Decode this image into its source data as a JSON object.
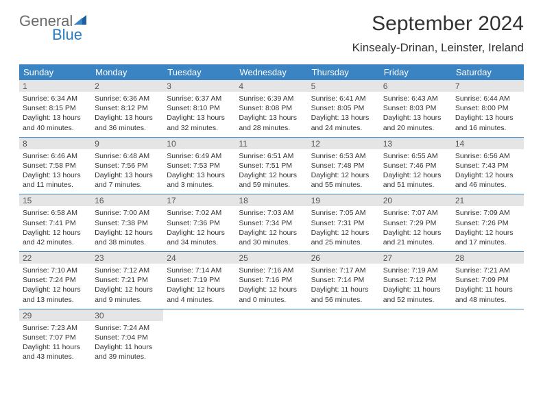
{
  "brand": {
    "part1": "General",
    "part2": "Blue"
  },
  "title": "September 2024",
  "location": "Kinsealy-Drinan, Leinster, Ireland",
  "colors": {
    "header_bg": "#3b84c4",
    "header_fg": "#ffffff",
    "daynum_bg": "#e5e5e5",
    "brand_gray": "#6a6a6a",
    "brand_blue": "#2a7abf",
    "rule": "#3b84c4",
    "text": "#333333"
  },
  "weekdays": [
    "Sunday",
    "Monday",
    "Tuesday",
    "Wednesday",
    "Thursday",
    "Friday",
    "Saturday"
  ],
  "days": [
    {
      "n": "1",
      "sr": "Sunrise: 6:34 AM",
      "ss": "Sunset: 8:15 PM",
      "d1": "Daylight: 13 hours",
      "d2": "and 40 minutes."
    },
    {
      "n": "2",
      "sr": "Sunrise: 6:36 AM",
      "ss": "Sunset: 8:12 PM",
      "d1": "Daylight: 13 hours",
      "d2": "and 36 minutes."
    },
    {
      "n": "3",
      "sr": "Sunrise: 6:37 AM",
      "ss": "Sunset: 8:10 PM",
      "d1": "Daylight: 13 hours",
      "d2": "and 32 minutes."
    },
    {
      "n": "4",
      "sr": "Sunrise: 6:39 AM",
      "ss": "Sunset: 8:08 PM",
      "d1": "Daylight: 13 hours",
      "d2": "and 28 minutes."
    },
    {
      "n": "5",
      "sr": "Sunrise: 6:41 AM",
      "ss": "Sunset: 8:05 PM",
      "d1": "Daylight: 13 hours",
      "d2": "and 24 minutes."
    },
    {
      "n": "6",
      "sr": "Sunrise: 6:43 AM",
      "ss": "Sunset: 8:03 PM",
      "d1": "Daylight: 13 hours",
      "d2": "and 20 minutes."
    },
    {
      "n": "7",
      "sr": "Sunrise: 6:44 AM",
      "ss": "Sunset: 8:00 PM",
      "d1": "Daylight: 13 hours",
      "d2": "and 16 minutes."
    },
    {
      "n": "8",
      "sr": "Sunrise: 6:46 AM",
      "ss": "Sunset: 7:58 PM",
      "d1": "Daylight: 13 hours",
      "d2": "and 11 minutes."
    },
    {
      "n": "9",
      "sr": "Sunrise: 6:48 AM",
      "ss": "Sunset: 7:56 PM",
      "d1": "Daylight: 13 hours",
      "d2": "and 7 minutes."
    },
    {
      "n": "10",
      "sr": "Sunrise: 6:49 AM",
      "ss": "Sunset: 7:53 PM",
      "d1": "Daylight: 13 hours",
      "d2": "and 3 minutes."
    },
    {
      "n": "11",
      "sr": "Sunrise: 6:51 AM",
      "ss": "Sunset: 7:51 PM",
      "d1": "Daylight: 12 hours",
      "d2": "and 59 minutes."
    },
    {
      "n": "12",
      "sr": "Sunrise: 6:53 AM",
      "ss": "Sunset: 7:48 PM",
      "d1": "Daylight: 12 hours",
      "d2": "and 55 minutes."
    },
    {
      "n": "13",
      "sr": "Sunrise: 6:55 AM",
      "ss": "Sunset: 7:46 PM",
      "d1": "Daylight: 12 hours",
      "d2": "and 51 minutes."
    },
    {
      "n": "14",
      "sr": "Sunrise: 6:56 AM",
      "ss": "Sunset: 7:43 PM",
      "d1": "Daylight: 12 hours",
      "d2": "and 46 minutes."
    },
    {
      "n": "15",
      "sr": "Sunrise: 6:58 AM",
      "ss": "Sunset: 7:41 PM",
      "d1": "Daylight: 12 hours",
      "d2": "and 42 minutes."
    },
    {
      "n": "16",
      "sr": "Sunrise: 7:00 AM",
      "ss": "Sunset: 7:38 PM",
      "d1": "Daylight: 12 hours",
      "d2": "and 38 minutes."
    },
    {
      "n": "17",
      "sr": "Sunrise: 7:02 AM",
      "ss": "Sunset: 7:36 PM",
      "d1": "Daylight: 12 hours",
      "d2": "and 34 minutes."
    },
    {
      "n": "18",
      "sr": "Sunrise: 7:03 AM",
      "ss": "Sunset: 7:34 PM",
      "d1": "Daylight: 12 hours",
      "d2": "and 30 minutes."
    },
    {
      "n": "19",
      "sr": "Sunrise: 7:05 AM",
      "ss": "Sunset: 7:31 PM",
      "d1": "Daylight: 12 hours",
      "d2": "and 25 minutes."
    },
    {
      "n": "20",
      "sr": "Sunrise: 7:07 AM",
      "ss": "Sunset: 7:29 PM",
      "d1": "Daylight: 12 hours",
      "d2": "and 21 minutes."
    },
    {
      "n": "21",
      "sr": "Sunrise: 7:09 AM",
      "ss": "Sunset: 7:26 PM",
      "d1": "Daylight: 12 hours",
      "d2": "and 17 minutes."
    },
    {
      "n": "22",
      "sr": "Sunrise: 7:10 AM",
      "ss": "Sunset: 7:24 PM",
      "d1": "Daylight: 12 hours",
      "d2": "and 13 minutes."
    },
    {
      "n": "23",
      "sr": "Sunrise: 7:12 AM",
      "ss": "Sunset: 7:21 PM",
      "d1": "Daylight: 12 hours",
      "d2": "and 9 minutes."
    },
    {
      "n": "24",
      "sr": "Sunrise: 7:14 AM",
      "ss": "Sunset: 7:19 PM",
      "d1": "Daylight: 12 hours",
      "d2": "and 4 minutes."
    },
    {
      "n": "25",
      "sr": "Sunrise: 7:16 AM",
      "ss": "Sunset: 7:16 PM",
      "d1": "Daylight: 12 hours",
      "d2": "and 0 minutes."
    },
    {
      "n": "26",
      "sr": "Sunrise: 7:17 AM",
      "ss": "Sunset: 7:14 PM",
      "d1": "Daylight: 11 hours",
      "d2": "and 56 minutes."
    },
    {
      "n": "27",
      "sr": "Sunrise: 7:19 AM",
      "ss": "Sunset: 7:12 PM",
      "d1": "Daylight: 11 hours",
      "d2": "and 52 minutes."
    },
    {
      "n": "28",
      "sr": "Sunrise: 7:21 AM",
      "ss": "Sunset: 7:09 PM",
      "d1": "Daylight: 11 hours",
      "d2": "and 48 minutes."
    },
    {
      "n": "29",
      "sr": "Sunrise: 7:23 AM",
      "ss": "Sunset: 7:07 PM",
      "d1": "Daylight: 11 hours",
      "d2": "and 43 minutes."
    },
    {
      "n": "30",
      "sr": "Sunrise: 7:24 AM",
      "ss": "Sunset: 7:04 PM",
      "d1": "Daylight: 11 hours",
      "d2": "and 39 minutes."
    }
  ]
}
